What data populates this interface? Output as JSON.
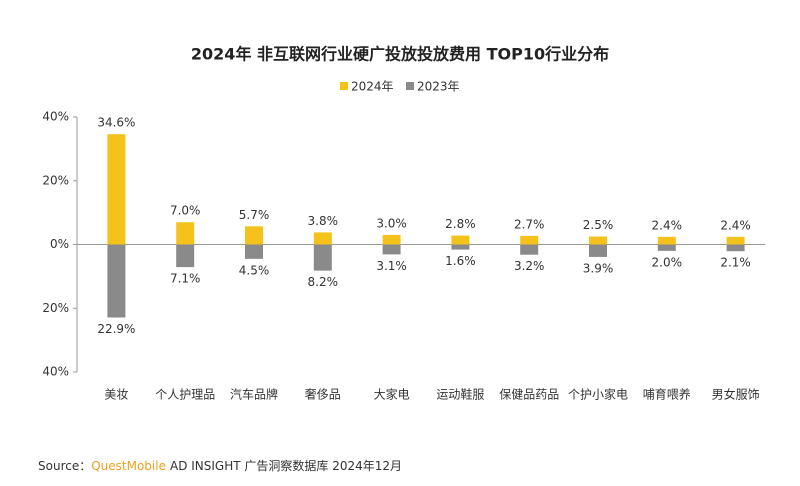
{
  "chart_data": {
    "type": "bar",
    "title": "2024年 非互联网行业硬广投放投放费用 TOP10行业分布",
    "categories": [
      "美妆",
      "个人护理品",
      "汽车品牌",
      "奢侈品",
      "大家电",
      "运动鞋服",
      "保健品药品",
      "个护小家电",
      "哺育喂养",
      "男女服饰"
    ],
    "series": [
      {
        "name": "2024年",
        "color": "#f5c21b",
        "values": [
          34.6,
          7.0,
          5.7,
          3.8,
          3.0,
          2.8,
          2.7,
          2.5,
          2.4,
          2.4
        ],
        "value_labels": [
          "34.6%",
          "7.0%",
          "5.7%",
          "3.8%",
          "3.0%",
          "2.8%",
          "2.7%",
          "2.5%",
          "2.4%",
          "2.4%"
        ]
      },
      {
        "name": "2023年",
        "color": "#8a8a8a",
        "values": [
          -22.9,
          -7.1,
          -4.5,
          -8.2,
          -3.1,
          -1.6,
          -3.2,
          -3.9,
          -2.0,
          -2.1
        ],
        "value_labels": [
          "22.9%",
          "7.1%",
          "4.5%",
          "8.2%",
          "3.1%",
          "1.6%",
          "3.2%",
          "3.9%",
          "2.0%",
          "2.1%"
        ]
      }
    ],
    "ylim": [
      -40,
      40
    ],
    "yticks": [
      {
        "value": -40,
        "label": "40%"
      },
      {
        "value": -20,
        "label": "20%"
      },
      {
        "value": 0,
        "label": "0%"
      },
      {
        "value": 20,
        "label": "20%"
      },
      {
        "value": 40,
        "label": "40%"
      }
    ],
    "grid": false,
    "legend": "top",
    "source": {
      "label": "Source：",
      "brand": "QuestMobile",
      "text": "AD INSIGHT 广告洞察数据库 2024年12月"
    }
  }
}
